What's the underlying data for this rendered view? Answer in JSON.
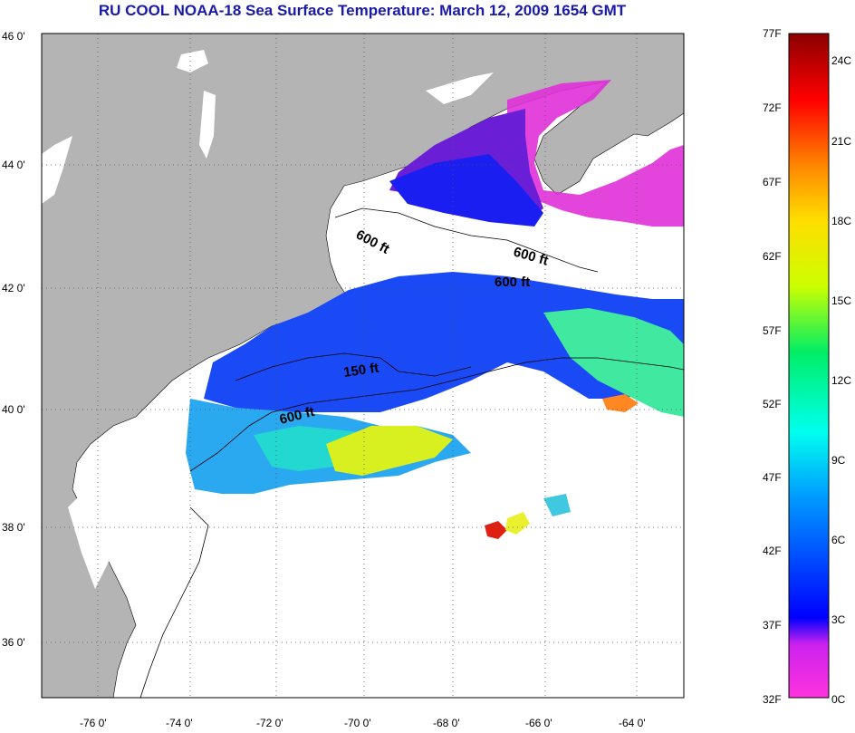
{
  "title": "RU COOL  NOAA-18  Sea Surface Temperature:  March 12, 2009 1654 GMT",
  "map": {
    "lon_range": [
      -77.0,
      -63.0
    ],
    "lat_range": [
      35.0,
      46.0
    ],
    "lon_ticks": [
      "-76 0'",
      "-74 0'",
      "-72 0'",
      "-70 0'",
      "-68 0'",
      "-66 0'",
      "-64 0'"
    ],
    "lat_ticks": [
      "46 0'",
      "44 0'",
      "42 0'",
      "40 0'",
      "38 0'",
      "36 0'"
    ],
    "grid": "dotted",
    "contour_labels": [
      "600 ft",
      "600 ft",
      "600 ft",
      "150 ft",
      "600 ft"
    ],
    "colors": {
      "land": "#b4b4b4",
      "ocean_no_data": "#ffffff"
    }
  },
  "colorbar": {
    "f_labels": [
      "77F",
      "72F",
      "67F",
      "62F",
      "57F",
      "52F",
      "47F",
      "42F",
      "37F",
      "32F"
    ],
    "c_labels": [
      "24C",
      "21C",
      "18C",
      "15C",
      "12C",
      "9C",
      "6C",
      "3C",
      "0C"
    ],
    "stops": [
      "#ff33dd",
      "#8a2be2",
      "#0000ff",
      "#00aaff",
      "#00ffee",
      "#00ee66",
      "#ccff00",
      "#ffee00",
      "#ff8800",
      "#ff0000",
      "#8b0000"
    ]
  }
}
